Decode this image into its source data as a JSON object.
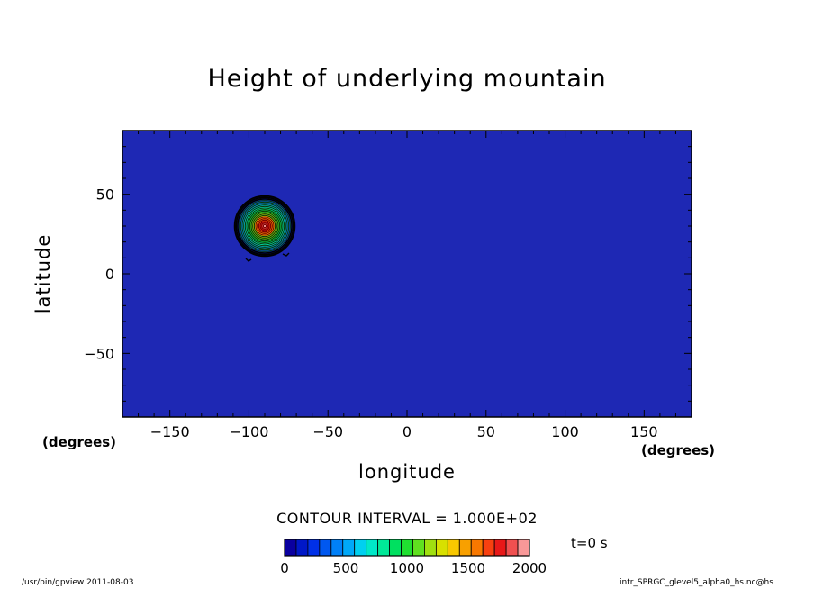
{
  "chart_data": {
    "type": "heatmap",
    "title": "Height of underlying mountain",
    "xlabel": "longitude",
    "ylabel": "latitude",
    "x_unit": "(degrees)",
    "xlim": [
      -180,
      180
    ],
    "ylim": [
      -90,
      90
    ],
    "x_ticks": [
      -150,
      -100,
      -50,
      0,
      50,
      100,
      150
    ],
    "y_ticks": [
      50,
      0,
      -50
    ],
    "field": {
      "description": "isolated conical mountain",
      "center_lon": -90,
      "center_lat": 30,
      "radius_deg": 19,
      "peak_height": 2000,
      "background_height": 0
    },
    "contour_interval_text": "CONTOUR INTERVAL = 1.000E+02",
    "colorbar": {
      "labels": [
        "0",
        "500",
        "1000",
        "1500",
        "2000"
      ],
      "min": 0,
      "max": 2000,
      "colors": [
        "#0a00a0",
        "#0018c8",
        "#0030e8",
        "#0058f0",
        "#0080f8",
        "#00a8f8",
        "#00d0f0",
        "#00e8c8",
        "#00e898",
        "#00e060",
        "#20e030",
        "#60e020",
        "#a0e010",
        "#d8e000",
        "#f8c800",
        "#f8a000",
        "#f87800",
        "#f84010",
        "#e81818",
        "#f05050",
        "#f89898"
      ]
    },
    "background_color": "#1e28b4"
  },
  "annotations": {
    "time": "t=0 s",
    "footer_left": "/usr/bin/gpview   2011-08-03",
    "footer_right": "intr_SPRGC_glevel5_alpha0_hs.nc@hs"
  }
}
